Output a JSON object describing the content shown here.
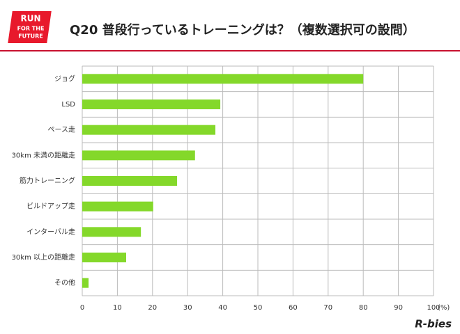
{
  "logo": [
    "RUN",
    "FOR THE",
    "FUTURE"
  ],
  "brand": "R-bies",
  "chart_data": {
    "type": "hbar",
    "title": "Q20 普段行っているトレーニングは？（複数選択可の設問）",
    "x_label": "(%)",
    "categories": [
      "ジョグ",
      "LSD",
      "ペース走",
      "30km 未満の距離走",
      "筋力トレーニング",
      "ビルドアップ走",
      "インターバル走",
      "30km 以上の距離走",
      "その他"
    ],
    "values": [
      80,
      39.3,
      37.9,
      32.1,
      27,
      20.2,
      16.7,
      12.5,
      1.8
    ],
    "color": "#84d82a",
    "xlim": [
      0,
      100
    ],
    "xticks": [
      0,
      10,
      20,
      30,
      40,
      50,
      60,
      70,
      80,
      90,
      100
    ],
    "grid": true
  }
}
